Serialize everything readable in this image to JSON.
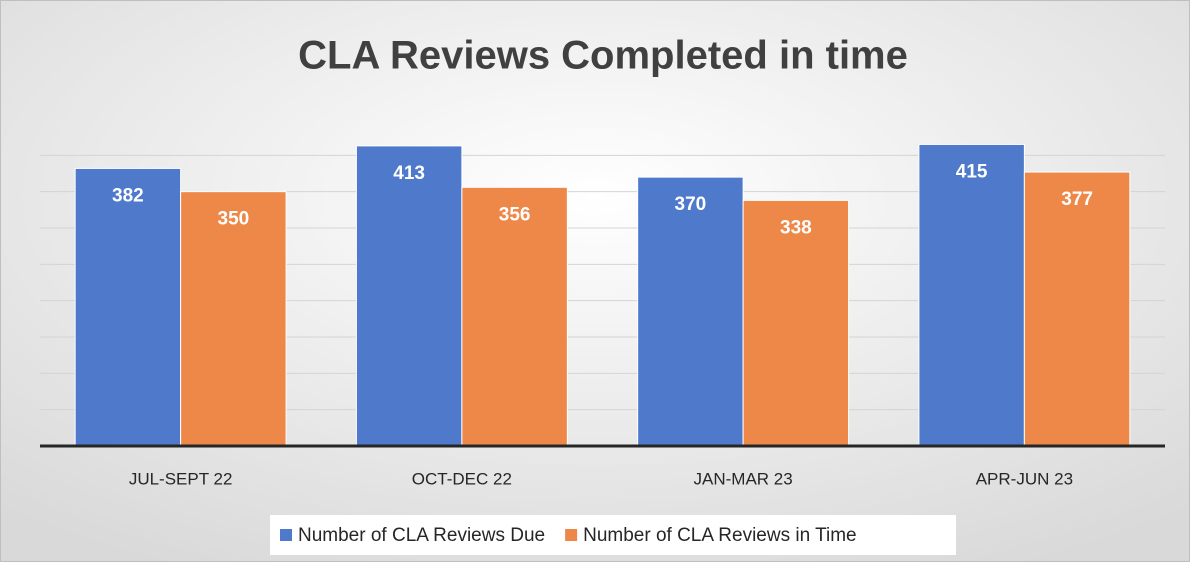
{
  "chart_data": {
    "type": "bar",
    "title": "CLA Reviews Completed in time",
    "categories": [
      "JUL-SEPT 22",
      "OCT-DEC 22",
      "JAN-MAR 23",
      "APR-JUN 23"
    ],
    "series": [
      {
        "name": "Number of CLA Reviews Due",
        "color": "#4f7acb",
        "values": [
          382,
          413,
          370,
          415
        ]
      },
      {
        "name": "Number of CLA Reviews in Time",
        "color": "#ee8848",
        "values": [
          350,
          356,
          338,
          377
        ]
      }
    ],
    "ylim": [
      0,
      450
    ],
    "yticks": [
      0,
      50,
      100,
      150,
      200,
      250,
      300,
      350,
      400
    ],
    "grid": true,
    "legend": "bottom"
  }
}
